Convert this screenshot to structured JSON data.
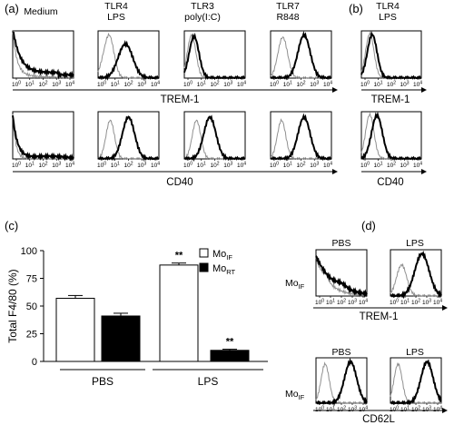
{
  "figure": {
    "panel_labels": [
      "(a)",
      "(b)",
      "(c)",
      "(d)"
    ],
    "panel_a": {
      "headers": [
        {
          "line1": "Medium",
          "line2": ""
        },
        {
          "line1": "TLR4",
          "line2": "LPS"
        },
        {
          "line1": "TLR3",
          "line2": "poly(I:C)"
        },
        {
          "line1": "TLR7",
          "line2": "R848"
        }
      ],
      "markers": [
        "TREM-1",
        "CD40"
      ]
    },
    "panel_b": {
      "header": {
        "line1": "TLR4",
        "line2": "LPS"
      },
      "markers": [
        "TREM-1",
        "CD40"
      ]
    },
    "panel_d": {
      "headers": [
        "PBS",
        "LPS"
      ],
      "row_label_base": "Mo",
      "row_label_sub": "IF",
      "markers": [
        "TREM-1",
        "CD62L"
      ]
    },
    "histogram_ticks": [
      "10^0",
      "10^1",
      "10^2",
      "10^3",
      "10^4"
    ],
    "colors": {
      "control": "#909090",
      "treated": "#000000"
    }
  },
  "chart_data": [
    {
      "type": "bar",
      "panel": "(c)",
      "title": "",
      "ylabel": "Total F4/80 (%)",
      "xlabel": "",
      "ylim": [
        0,
        100
      ],
      "yticks": [
        0,
        25,
        50,
        75,
        100
      ],
      "groups": [
        "PBS",
        "LPS"
      ],
      "series": [
        {
          "name_base": "Mo",
          "name_sub": "IF",
          "fill": "#ffffff",
          "values": [
            57,
            87
          ],
          "errors": [
            2.5,
            1.8
          ]
        },
        {
          "name_base": "Mo",
          "name_sub": "RT",
          "fill": "#000000",
          "values": [
            41,
            10
          ],
          "errors": [
            2.5,
            1.0
          ]
        }
      ],
      "annotations": [
        {
          "group": 1,
          "series": 0,
          "text": "**"
        },
        {
          "group": 1,
          "series": 1,
          "text": "**"
        }
      ]
    }
  ]
}
